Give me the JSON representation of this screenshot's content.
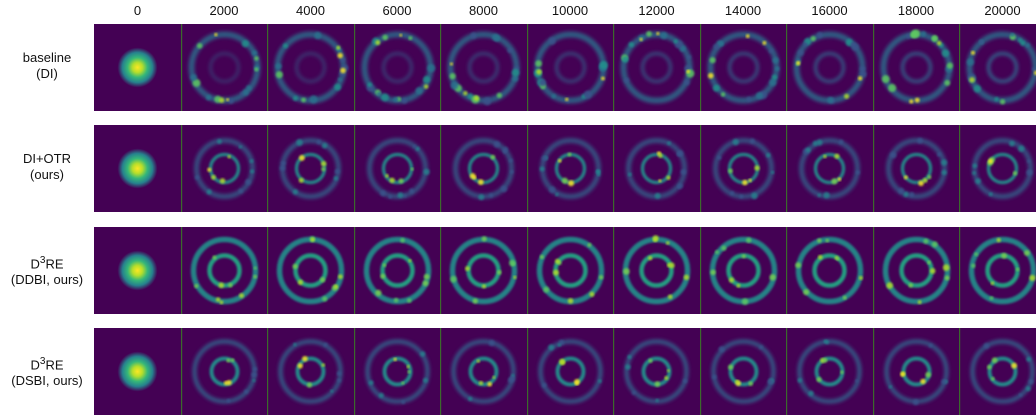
{
  "columns": [
    "0",
    "2000",
    "4000",
    "6000",
    "8000",
    "10000",
    "12000",
    "14000",
    "16000",
    "18000",
    "20000"
  ],
  "rows": [
    {
      "id": "baseline",
      "line1": "baseline",
      "line1_sup": "",
      "line1_after": "",
      "line2": "(DI)",
      "style": "noisy"
    },
    {
      "id": "di-otr",
      "line1": "DI+OTR",
      "line1_sup": "",
      "line1_after": "",
      "line2": "(ours)",
      "style": "inner"
    },
    {
      "id": "d3re-ddbi",
      "line1": "D",
      "line1_sup": "3",
      "line1_after": "RE",
      "line2": "(DDBI, ours)",
      "style": "bright"
    },
    {
      "id": "d3re-dsbi",
      "line1": "D",
      "line1_sup": "3",
      "line1_after": "RE",
      "line2": "(DSBI, ours)",
      "style": "clean"
    }
  ],
  "colors": {
    "background": "#440154",
    "divider": "#3b6a2c",
    "colormap": [
      "#440154",
      "#3b528b",
      "#21918c",
      "#5ec962",
      "#fde725"
    ]
  }
}
